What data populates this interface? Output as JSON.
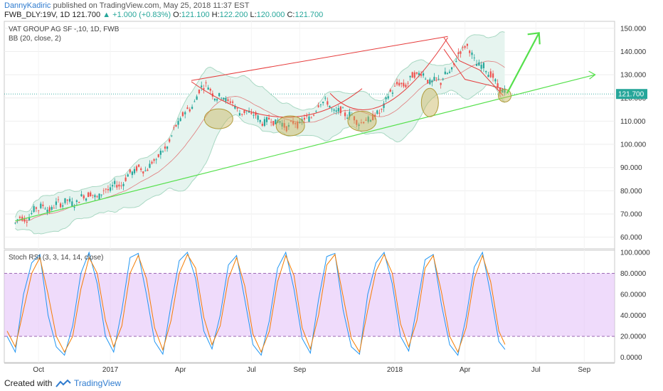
{
  "header": {
    "author": "DannyKadiric",
    "published": "published on TradingView.com, May 25, 2018 11:37 EST",
    "symbol": "FWB_DLY:19V, 1D",
    "last": "121.700",
    "change": "▲ +1.000 (+0.83%)",
    "o_label": "O:",
    "o": "121.100",
    "h_label": "H:",
    "h": "122.200",
    "l_label": "L:",
    "l": "120.000",
    "c_label": "C:",
    "c": "121.700"
  },
  "overlay": {
    "instrument": "VAT GROUP AG SF -,10, 1D, FWB",
    "bb": "BB (20, close, 2)",
    "stoch": "Stoch RSI (3, 3, 14, 14, close)"
  },
  "footer": {
    "created": "Created with",
    "brand": "TradingView"
  },
  "colors": {
    "up": "#26a69a",
    "down": "#ef5350",
    "bb": "#a9d8c3",
    "stoch_k": "#2196f3",
    "stoch_d": "#f57c00",
    "band": "#e1bef7",
    "trend": "#55e04c",
    "channel": "#e63b3b",
    "ellipse": "#c8b45a"
  },
  "chart_data": [
    {
      "type": "candlestick",
      "title": "VAT GROUP AG SF -,10, 1D, FWB",
      "ylim": [
        55,
        153
      ],
      "y_ticks": [
        "150.000",
        "140.000",
        "130.000",
        "120.000",
        "110.000",
        "100.000",
        "90.000",
        "80.000",
        "70.000",
        "60.000"
      ],
      "x_ticks": [
        "Oct",
        "2017",
        "Apr",
        "Jul",
        "Sep",
        "2018",
        "Apr",
        "Jul",
        "Sep"
      ],
      "last_price_label": "121.700",
      "series": [
        {
          "name": "close",
          "x": [
            "2016-09-01",
            "2016-10-01",
            "2016-11-01",
            "2016-12-01",
            "2017-01-01",
            "2017-02-01",
            "2017-03-01",
            "2017-04-01",
            "2017-05-01",
            "2017-06-01",
            "2017-07-01",
            "2017-08-01",
            "2017-09-01",
            "2017-10-01",
            "2017-11-01",
            "2017-12-01",
            "2018-01-01",
            "2018-02-01",
            "2018-03-01",
            "2018-04-01",
            "2018-05-01",
            "2018-05-25"
          ],
          "values": [
            66,
            72,
            74,
            77,
            80,
            88,
            92,
            110,
            125,
            118,
            112,
            109,
            108,
            118,
            112,
            109,
            124,
            130,
            126,
            142,
            130,
            121.7
          ]
        }
      ],
      "annotations": {
        "support_line": {
          "from": [
            "2016-09-01",
            67
          ],
          "to": [
            "2018-09-15",
            130
          ]
        },
        "channel_top": {
          "from": [
            "2017-04-15",
            127.5
          ],
          "to": [
            "2018-03-10",
            146.5
          ]
        },
        "arrow_target": [
          "2018-07-05",
          148
        ]
      }
    },
    {
      "type": "line",
      "title": "Stoch RSI (3, 3, 14, 14, close)",
      "ylim": [
        -5,
        102
      ],
      "y_ticks": [
        "100.0000",
        "80.0000",
        "60.0000",
        "40.0000",
        "20.0000",
        "0.0000"
      ],
      "band": [
        20,
        80
      ],
      "series": [
        {
          "name": "K",
          "values": [
            20,
            5,
            60,
            90,
            98,
            40,
            10,
            2,
            30,
            80,
            100,
            70,
            20,
            5,
            45,
            95,
            99,
            60,
            15,
            3,
            50,
            92,
            100,
            75,
            25,
            8,
            40,
            88,
            97,
            55,
            12,
            2,
            35,
            85,
            100,
            65,
            18,
            4,
            55,
            96,
            99,
            45,
            10,
            3,
            60,
            90,
            100,
            70,
            20,
            6,
            48,
            93,
            98,
            50,
            12,
            2,
            38,
            86,
            100,
            60,
            15,
            5
          ]
        },
        {
          "name": "D",
          "values": [
            25,
            10,
            45,
            80,
            95,
            60,
            20,
            5,
            20,
            65,
            95,
            80,
            35,
            10,
            30,
            80,
            97,
            75,
            28,
            7,
            35,
            80,
            98,
            85,
            38,
            12,
            30,
            75,
            95,
            68,
            22,
            5,
            25,
            72,
            97,
            78,
            28,
            8,
            40,
            88,
            98,
            58,
            18,
            5,
            45,
            82,
            98,
            80,
            32,
            10,
            35,
            85,
            97,
            62,
            20,
            5,
            28,
            75,
            97,
            72,
            25,
            8
          ]
        }
      ]
    }
  ]
}
